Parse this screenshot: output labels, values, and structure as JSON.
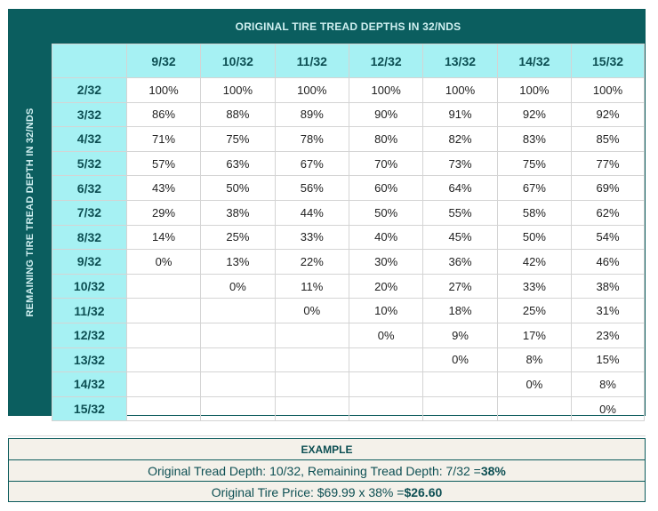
{
  "table": {
    "title": "ORIGINAL TIRE TREAD DEPTHS IN 32/NDS",
    "side_title": "REMAINING TIRE TREAD DEPTH IN 32/NDS",
    "columns": [
      "9/32",
      "10/32",
      "11/32",
      "12/32",
      "13/32",
      "14/32",
      "15/32"
    ],
    "rows": [
      {
        "label": "2/32",
        "cells": [
          "100%",
          "100%",
          "100%",
          "100%",
          "100%",
          "100%",
          "100%"
        ]
      },
      {
        "label": "3/32",
        "cells": [
          "86%",
          "88%",
          "89%",
          "90%",
          "91%",
          "92%",
          "92%"
        ]
      },
      {
        "label": "4/32",
        "cells": [
          "71%",
          "75%",
          "78%",
          "80%",
          "82%",
          "83%",
          "85%"
        ]
      },
      {
        "label": "5/32",
        "cells": [
          "57%",
          "63%",
          "67%",
          "70%",
          "73%",
          "75%",
          "77%"
        ]
      },
      {
        "label": "6/32",
        "cells": [
          "43%",
          "50%",
          "56%",
          "60%",
          "64%",
          "67%",
          "69%"
        ]
      },
      {
        "label": "7/32",
        "cells": [
          "29%",
          "38%",
          "44%",
          "50%",
          "55%",
          "58%",
          "62%"
        ]
      },
      {
        "label": "8/32",
        "cells": [
          "14%",
          "25%",
          "33%",
          "40%",
          "45%",
          "50%",
          "54%"
        ]
      },
      {
        "label": "9/32",
        "cells": [
          "0%",
          "13%",
          "22%",
          "30%",
          "36%",
          "42%",
          "46%"
        ]
      },
      {
        "label": "10/32",
        "cells": [
          "",
          "0%",
          "11%",
          "20%",
          "27%",
          "33%",
          "38%"
        ]
      },
      {
        "label": "11/32",
        "cells": [
          "",
          "",
          "0%",
          "10%",
          "18%",
          "25%",
          "31%"
        ]
      },
      {
        "label": "12/32",
        "cells": [
          "",
          "",
          "",
          "0%",
          "9%",
          "17%",
          "23%"
        ]
      },
      {
        "label": "13/32",
        "cells": [
          "",
          "",
          "",
          "",
          "0%",
          "8%",
          "15%"
        ]
      },
      {
        "label": "14/32",
        "cells": [
          "",
          "",
          "",
          "",
          "",
          "0%",
          "8%"
        ]
      },
      {
        "label": "15/32",
        "cells": [
          "",
          "",
          "",
          "",
          "",
          "",
          "0%"
        ]
      }
    ]
  },
  "example": {
    "title": "EXAMPLE",
    "line1_text": "Original Tread Depth: 10/32, Remaining Tread Depth: 7/32 = ",
    "line1_result": "38%",
    "line2_text": "Original Tire Price: $69.99 x 38% = ",
    "line2_result": "$26.60"
  },
  "colors": {
    "dark_teal": "#0b5e5f",
    "header_cyan": "#a6f1f3",
    "example_bg": "#f4f1ea"
  }
}
